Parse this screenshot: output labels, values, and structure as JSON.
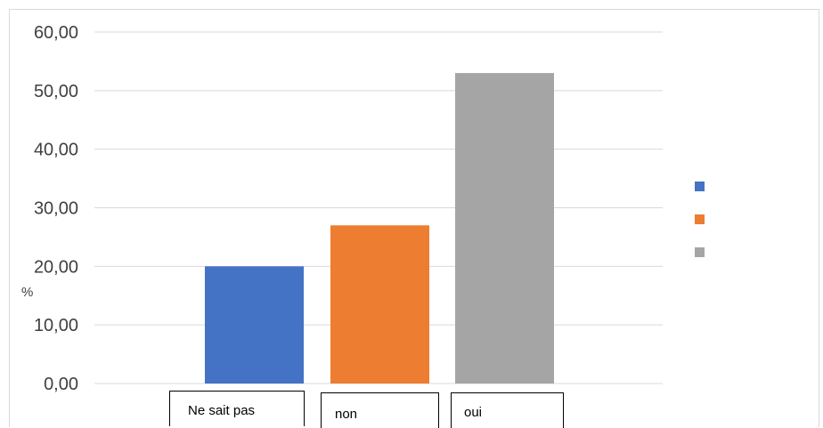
{
  "chart_data": {
    "type": "bar",
    "categories": [
      "Ne sait pas",
      "non",
      "oui"
    ],
    "values": [
      20.0,
      27.0,
      53.0
    ],
    "colors": [
      "#4472c4",
      "#ed7d31",
      "#a5a5a5"
    ],
    "title": "",
    "xlabel": "",
    "ylabel": "%",
    "ylim": [
      0,
      60
    ],
    "yticks": [
      "0,00",
      "10,00",
      "20,00",
      "30,00",
      "40,00",
      "50,00",
      "60,00"
    ],
    "grid": true,
    "legend": {
      "placement": "right",
      "entries": [
        "",
        "",
        ""
      ]
    },
    "grid_color": "#d9d9d9"
  }
}
